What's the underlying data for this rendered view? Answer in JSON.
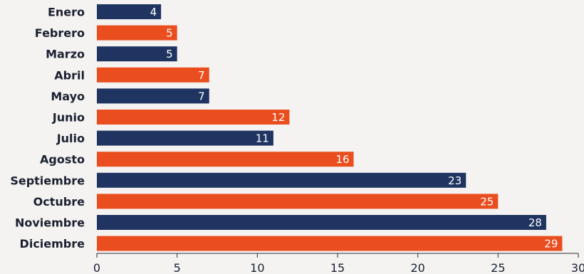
{
  "chart_data": {
    "type": "bar",
    "orientation": "horizontal",
    "categories": [
      "Enero",
      "Febrero",
      "Marzo",
      "Abril",
      "Mayo",
      "Junio",
      "Julio",
      "Agosto",
      "Septiembre",
      "Octubre",
      "Noviembre",
      "Diciembre"
    ],
    "values": [
      4,
      5,
      5,
      7,
      7,
      12,
      11,
      16,
      23,
      25,
      28,
      29
    ],
    "xlim": [
      0,
      30
    ],
    "xticks": [
      0,
      5,
      10,
      15,
      20,
      25,
      30
    ],
    "bar_colors": [
      "#1f3461",
      "#ea4e1f",
      "#1f3461",
      "#ea4e1f",
      "#1f3461",
      "#ea4e1f",
      "#1f3461",
      "#ea4e1f",
      "#1f3461",
      "#ea4e1f",
      "#1f3461",
      "#ea4e1f"
    ],
    "grid": false,
    "legend": "none",
    "data_labels": true
  }
}
